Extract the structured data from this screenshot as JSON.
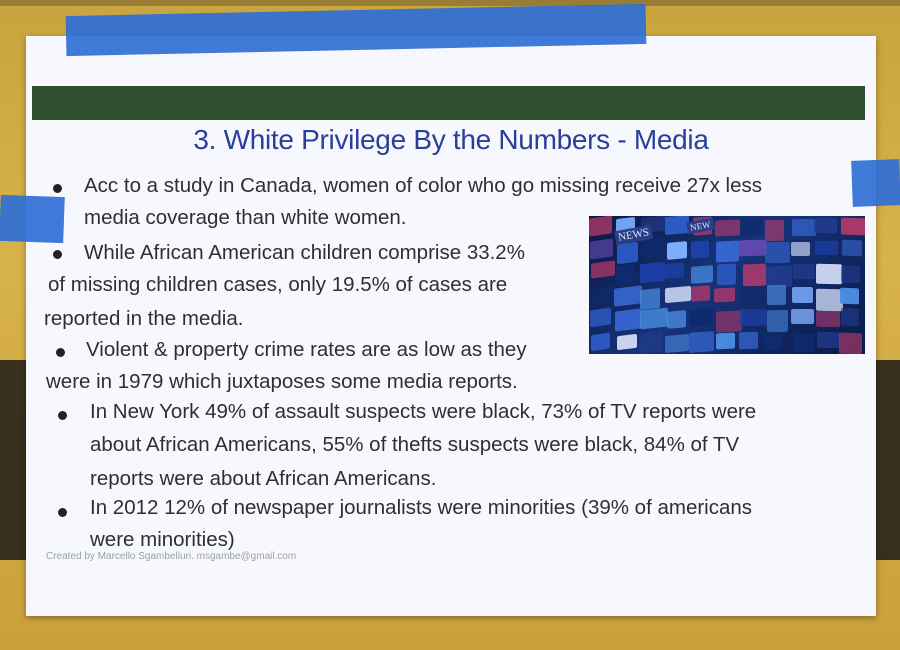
{
  "poster": {
    "title": "3. White Privilege By the Numbers - Media",
    "lines": [
      {
        "text": "Acc to a study in Canada, women of color who go missing receive 27x less",
        "bullet": true
      },
      {
        "text": "media coverage than white women.",
        "bullet": false
      },
      {
        "text": "While African American children comprise 33.2%",
        "bullet": true
      },
      {
        "text": "of missing children cases, only 19.5% of cases are",
        "bullet": false
      },
      {
        "text": "reported in the media.",
        "bullet": false
      },
      {
        "text": "Violent & property crime rates are as low as they",
        "bullet": true
      },
      {
        "text": "were in 1979 which juxtaposes some media reports.",
        "bullet": false
      },
      {
        "text": "In New York 49% of assault suspects were black, 73% of TV reports were",
        "bullet": true
      },
      {
        "text": "about African Americans, 55% of thefts suspects were black, 84% of TV",
        "bullet": false
      },
      {
        "text": "reports were about African Americans.",
        "bullet": false
      },
      {
        "text": "In 2012 12% of newspaper journalists were minorities (39% of americans",
        "bullet": true
      },
      {
        "text": "were minorities)",
        "bullet": false
      }
    ],
    "footer": "Created by Marcello Sgambelluri. msgambe@gmail.com",
    "image_labels": [
      "NEWS",
      "NEW"
    ]
  },
  "colors": {
    "title": "#2a3f9a",
    "header_bar": "#2f4f2f",
    "tape": "#2f6fd6",
    "poster": "#f7f8fd"
  }
}
